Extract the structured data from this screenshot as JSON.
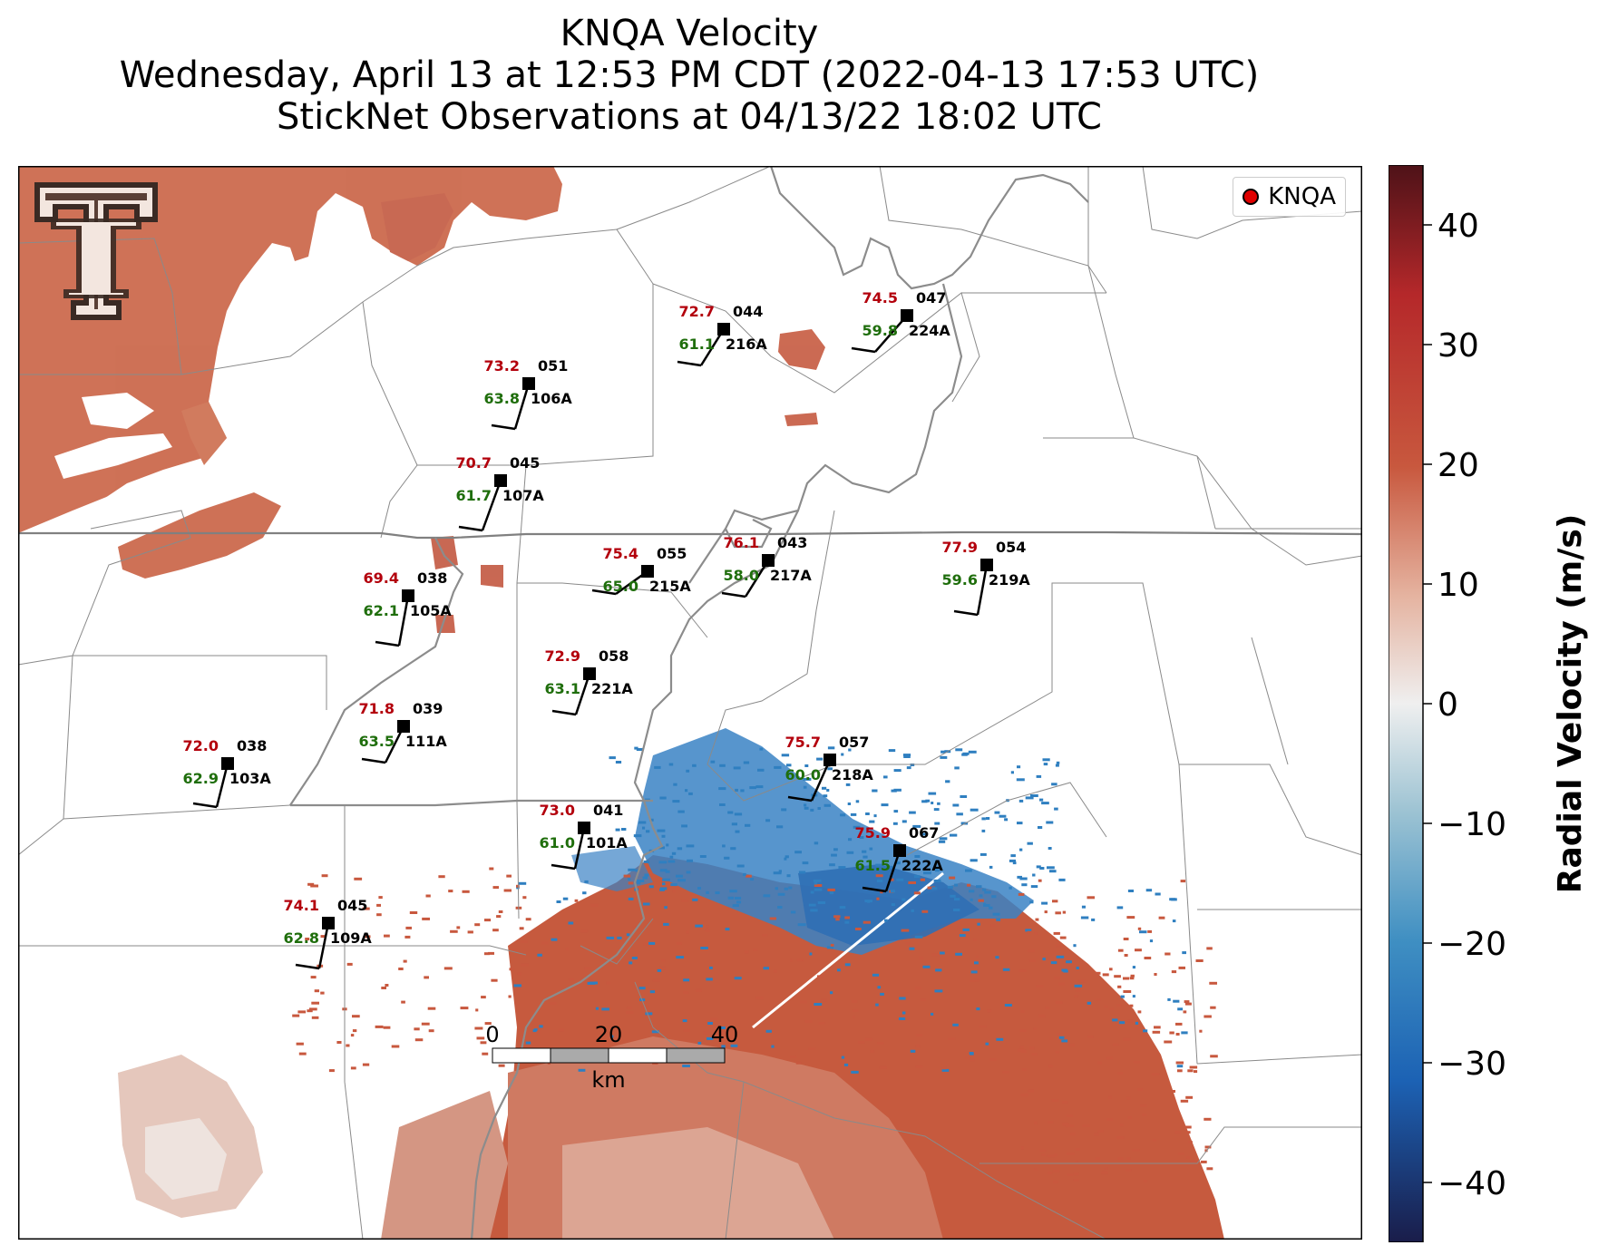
{
  "title": {
    "line1": "KNQA Velocity",
    "line2": "Wednesday, April 13 at 12:53 PM CDT (2022-04-13 17:53 UTC)",
    "line3": "StickNet Observations at 04/13/22 18:02 UTC"
  },
  "legend": {
    "label": "KNQA",
    "marker_color": "#e00000"
  },
  "colorbar": {
    "label": "Radial Velocity (m/s)",
    "ticks": [
      "40",
      "30",
      "20",
      "10",
      "0",
      "−10",
      "−20",
      "−30",
      "−40"
    ],
    "range": [
      -45,
      45
    ],
    "colors": [
      "#1a1d4a",
      "#1c62b4",
      "#3f8fc2",
      "#9dc3d3",
      "#efefef",
      "#e5b3a0",
      "#c8583e",
      "#b5282a",
      "#4e1218"
    ]
  },
  "scale_bar": {
    "ticks": [
      "0",
      "20",
      "40"
    ],
    "unit": "km"
  },
  "logo": {
    "name": "texas-tech-double-t-logo",
    "color": "#3a2a24"
  },
  "colors": {
    "temperature": "#b3000c",
    "dewpoint": "#1f6e0c",
    "station_label": "#000000",
    "positive_velocity": "#c8583e",
    "negative_velocity": "#2f7fc0"
  },
  "stations": [
    {
      "id": "224A",
      "temp": "74.5",
      "dew": "59.8",
      "pressure": "047"
    },
    {
      "id": "216A",
      "temp": "72.7",
      "dew": "61.1",
      "pressure": "044"
    },
    {
      "id": "106A",
      "temp": "73.2",
      "dew": "63.8",
      "pressure": "051"
    },
    {
      "id": "107A",
      "temp": "70.7",
      "dew": "61.7",
      "pressure": "045"
    },
    {
      "id": "217A",
      "temp": "76.1",
      "dew": "58.0",
      "pressure": "043"
    },
    {
      "id": "219A",
      "temp": "77.9",
      "dew": "59.6",
      "pressure": "054"
    },
    {
      "id": "215A",
      "temp": "75.4",
      "dew": "65.0",
      "pressure": "055"
    },
    {
      "id": "105A",
      "temp": "69.4",
      "dew": "62.1",
      "pressure": "038"
    },
    {
      "id": "221A",
      "temp": "72.9",
      "dew": "63.1",
      "pressure": "058"
    },
    {
      "id": "111A",
      "temp": "71.8",
      "dew": "63.5",
      "pressure": "039"
    },
    {
      "id": "103A",
      "temp": "72.0",
      "dew": "62.9",
      "pressure": "038"
    },
    {
      "id": "218A",
      "temp": "75.7",
      "dew": "60.0",
      "pressure": "057"
    },
    {
      "id": "101A",
      "temp": "73.0",
      "dew": "61.0",
      "pressure": "041"
    },
    {
      "id": "222A",
      "temp": "75.9",
      "dew": "61.5",
      "pressure": "067"
    },
    {
      "id": "109A",
      "temp": "74.1",
      "dew": "62.8",
      "pressure": "045"
    }
  ]
}
